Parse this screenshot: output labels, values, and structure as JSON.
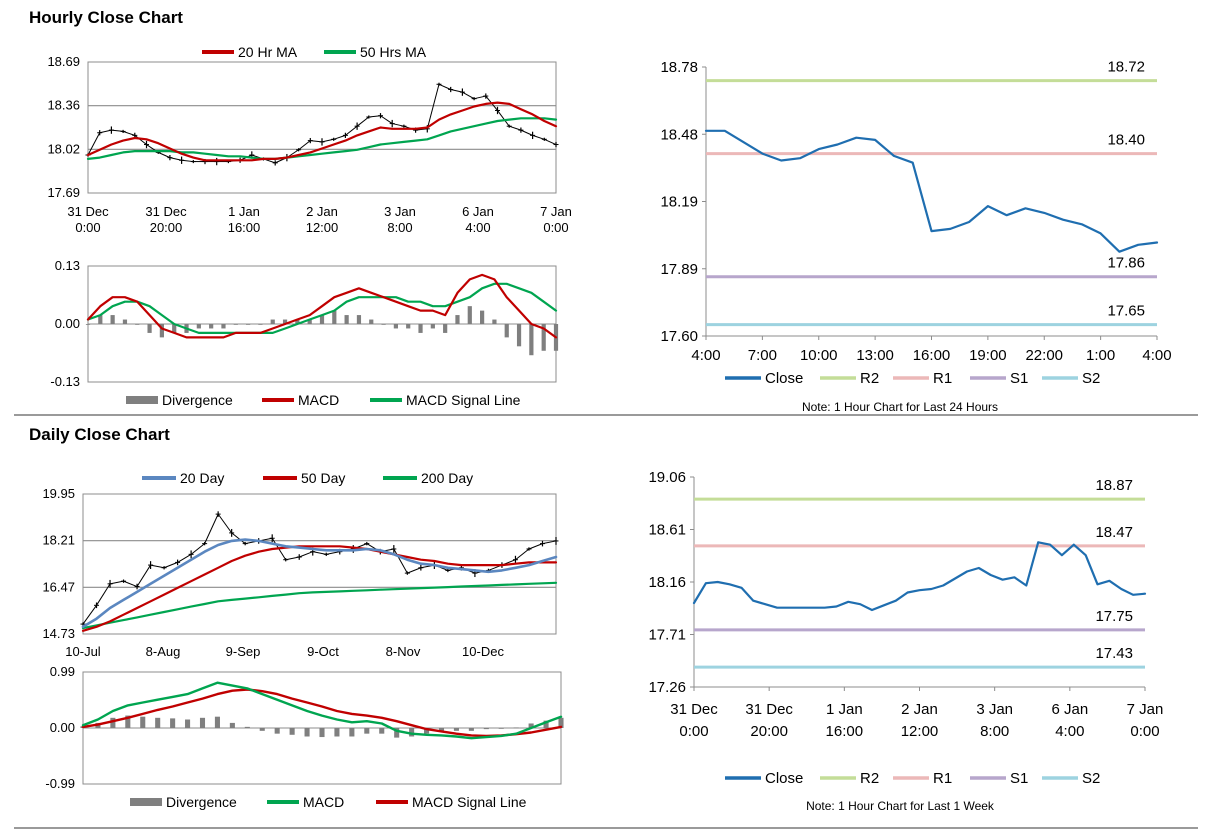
{
  "colors": {
    "ma_short": "#c00000",
    "ma_long": "#00a550",
    "close": "#1f6eb0",
    "r2": "#c4dd98",
    "r1": "#ecb8b8",
    "s1": "#b7a6cc",
    "s2": "#9dd3e0",
    "divergence": "#7f7f7f",
    "ma20_daily": "#5b87c0"
  },
  "sections": {
    "hourly_title": "Hourly Close Chart",
    "daily_title": "Daily Close Chart"
  },
  "chart_data": [
    {
      "id": "hourly_price",
      "type": "line",
      "title": "Hourly Close Chart",
      "ylim": [
        17.69,
        18.69
      ],
      "yticks": [
        "18.69",
        "18.36",
        "18.02",
        "17.69"
      ],
      "xticks": [
        [
          "31 Dec",
          "0:00"
        ],
        [
          "31 Dec",
          "20:00"
        ],
        [
          "1 Jan",
          "16:00"
        ],
        [
          "2 Jan",
          "12:00"
        ],
        [
          "3 Jan",
          "8:00"
        ],
        [
          "6 Jan",
          "4:00"
        ],
        [
          "7 Jan",
          "0:00"
        ]
      ],
      "legend": [
        "20 Hr MA",
        "50 Hrs MA"
      ],
      "series": [
        {
          "name": "Close",
          "values": [
            17.98,
            18.15,
            18.17,
            18.16,
            18.13,
            18.06,
            18.0,
            17.96,
            17.94,
            17.93,
            17.93,
            17.93,
            17.93,
            17.94,
            17.98,
            17.95,
            17.92,
            17.96,
            18.02,
            18.09,
            18.08,
            18.1,
            18.13,
            18.2,
            18.27,
            18.28,
            18.22,
            18.2,
            18.17,
            18.18,
            18.52,
            18.48,
            18.46,
            18.41,
            18.43,
            18.32,
            18.2,
            18.17,
            18.13,
            18.1,
            18.06
          ]
        },
        {
          "name": "20 Hr MA",
          "values": [
            17.98,
            18.02,
            18.06,
            18.09,
            18.11,
            18.1,
            18.07,
            18.03,
            17.99,
            17.96,
            17.94,
            17.94,
            17.94,
            17.94,
            17.94,
            17.95,
            17.95,
            17.96,
            17.98,
            18.0,
            18.03,
            18.06,
            18.09,
            18.13,
            18.16,
            18.19,
            18.18,
            18.18,
            18.18,
            18.19,
            18.25,
            18.29,
            18.32,
            18.35,
            18.37,
            18.38,
            18.37,
            18.33,
            18.29,
            18.24,
            18.2
          ]
        },
        {
          "name": "50 Hrs MA",
          "values": [
            17.95,
            17.96,
            17.98,
            18.0,
            18.01,
            18.01,
            18.01,
            18.01,
            18.0,
            18.0,
            17.99,
            17.98,
            17.97,
            17.97,
            17.96,
            17.95,
            17.95,
            17.96,
            17.97,
            17.98,
            17.99,
            18.0,
            18.01,
            18.02,
            18.04,
            18.06,
            18.07,
            18.08,
            18.09,
            18.1,
            18.13,
            18.16,
            18.18,
            18.2,
            18.22,
            18.24,
            18.25,
            18.26,
            18.26,
            18.26,
            18.25
          ]
        }
      ]
    },
    {
      "id": "hourly_macd",
      "type": "line",
      "ylim": [
        -0.13,
        0.13
      ],
      "yticks": [
        "0.13",
        "0.00",
        "-0.13"
      ],
      "legend": [
        "Divergence",
        "MACD",
        "MACD Signal Line"
      ],
      "series": [
        {
          "name": "MACD",
          "values": [
            0.01,
            0.04,
            0.06,
            0.06,
            0.05,
            0.02,
            -0.01,
            -0.02,
            -0.03,
            -0.03,
            -0.03,
            -0.03,
            -0.02,
            -0.02,
            -0.02,
            -0.01,
            0.0,
            0.01,
            0.02,
            0.04,
            0.06,
            0.07,
            0.08,
            0.07,
            0.06,
            0.05,
            0.04,
            0.03,
            0.03,
            0.02,
            0.07,
            0.1,
            0.11,
            0.1,
            0.06,
            0.03,
            0.0,
            -0.01,
            -0.03
          ]
        },
        {
          "name": "MACD Signal Line",
          "values": [
            0.01,
            0.02,
            0.04,
            0.05,
            0.05,
            0.04,
            0.02,
            0.0,
            -0.01,
            -0.02,
            -0.02,
            -0.02,
            -0.02,
            -0.02,
            -0.02,
            -0.02,
            -0.01,
            0.0,
            0.01,
            0.02,
            0.03,
            0.05,
            0.06,
            0.06,
            0.06,
            0.06,
            0.05,
            0.05,
            0.04,
            0.04,
            0.05,
            0.06,
            0.08,
            0.09,
            0.09,
            0.08,
            0.07,
            0.05,
            0.03
          ]
        },
        {
          "name": "Divergence",
          "values": [
            0.0,
            0.02,
            0.02,
            0.01,
            0.0,
            -0.02,
            -0.03,
            -0.02,
            -0.02,
            -0.01,
            -0.01,
            -0.01,
            0.0,
            0.0,
            0.0,
            0.01,
            0.01,
            0.01,
            0.01,
            0.02,
            0.03,
            0.02,
            0.02,
            0.01,
            0.0,
            -0.01,
            -0.01,
            -0.02,
            -0.01,
            -0.02,
            0.02,
            0.04,
            0.03,
            0.01,
            -0.03,
            -0.05,
            -0.07,
            -0.06,
            -0.06
          ]
        }
      ]
    },
    {
      "id": "hourly_24h",
      "type": "line",
      "ylim": [
        17.6,
        18.78
      ],
      "yticks": [
        "18.78",
        "18.48",
        "18.19",
        "17.89",
        "17.60"
      ],
      "xticks": [
        "4:00",
        "7:00",
        "10:00",
        "13:00",
        "16:00",
        "19:00",
        "22:00",
        "1:00",
        "4:00"
      ],
      "legend": [
        "Close",
        "R2",
        "R1",
        "S1",
        "S2"
      ],
      "note": "Note: 1 Hour Chart for Last 24 Hours",
      "levels": {
        "R2": 18.72,
        "R1": 18.4,
        "S1": 17.86,
        "S2": 17.65
      },
      "level_labels": {
        "R2": "18.72",
        "R1": "18.40",
        "S1": "17.86",
        "S2": "17.65"
      },
      "series": [
        {
          "name": "Close",
          "values": [
            18.5,
            18.5,
            18.45,
            18.4,
            18.37,
            18.38,
            18.42,
            18.44,
            18.47,
            18.46,
            18.39,
            18.36,
            18.06,
            18.07,
            18.1,
            18.17,
            18.13,
            18.16,
            18.14,
            18.11,
            18.09,
            18.05,
            17.97,
            18.0,
            18.01
          ]
        }
      ]
    },
    {
      "id": "daily_price",
      "type": "line",
      "title": "Daily Close Chart",
      "ylim": [
        14.73,
        19.95
      ],
      "yticks": [
        "19.95",
        "18.21",
        "16.47",
        "14.73"
      ],
      "xticks": [
        "10-Jul",
        "8-Aug",
        "9-Sep",
        "9-Oct",
        "8-Nov",
        "10-Dec"
      ],
      "legend": [
        "20 Day",
        "50 Day",
        "200 Day"
      ],
      "series": [
        {
          "name": "Close",
          "values": [
            15.1,
            15.8,
            16.6,
            16.7,
            16.5,
            17.3,
            17.2,
            17.4,
            17.7,
            18.1,
            19.2,
            18.5,
            18.1,
            18.2,
            18.3,
            17.5,
            17.6,
            17.8,
            17.7,
            17.8,
            17.9,
            18.1,
            17.8,
            17.9,
            17.0,
            17.2,
            17.3,
            17.1,
            17.2,
            17.0,
            17.1,
            17.3,
            17.5,
            17.9,
            18.1,
            18.2
          ]
        },
        {
          "name": "20 Day",
          "values": [
            15.0,
            15.3,
            15.7,
            16.0,
            16.3,
            16.6,
            16.9,
            17.2,
            17.5,
            17.8,
            18.05,
            18.2,
            18.25,
            18.2,
            18.1,
            18.0,
            17.95,
            17.9,
            17.85,
            17.85,
            17.85,
            17.9,
            17.85,
            17.7,
            17.5,
            17.35,
            17.3,
            17.2,
            17.15,
            17.1,
            17.05,
            17.1,
            17.2,
            17.3,
            17.45,
            17.6
          ]
        },
        {
          "name": "50 Day",
          "values": [
            14.85,
            15.0,
            15.2,
            15.45,
            15.7,
            15.95,
            16.2,
            16.45,
            16.7,
            16.95,
            17.2,
            17.45,
            17.65,
            17.8,
            17.9,
            17.95,
            18.0,
            18.0,
            18.0,
            18.0,
            17.95,
            17.9,
            17.8,
            17.7,
            17.6,
            17.5,
            17.45,
            17.35,
            17.3,
            17.3,
            17.3,
            17.3,
            17.35,
            17.4,
            17.4,
            17.4
          ]
        },
        {
          "name": "200 Day",
          "values": [
            14.95,
            15.05,
            15.15,
            15.25,
            15.35,
            15.45,
            15.55,
            15.65,
            15.75,
            15.85,
            15.95,
            16.0,
            16.05,
            16.1,
            16.15,
            16.2,
            16.25,
            16.28,
            16.3,
            16.32,
            16.34,
            16.36,
            16.38,
            16.4,
            16.42,
            16.44,
            16.46,
            16.48,
            16.5,
            16.52,
            16.54,
            16.56,
            16.58,
            16.6,
            16.62,
            16.64
          ]
        }
      ]
    },
    {
      "id": "daily_macd",
      "type": "line",
      "ylim": [
        -0.99,
        0.99
      ],
      "yticks": [
        "0.99",
        "0.00",
        "-0.99"
      ],
      "legend": [
        "Divergence",
        "MACD",
        "MACD Signal Line"
      ],
      "series": [
        {
          "name": "MACD",
          "values": [
            0.05,
            0.15,
            0.3,
            0.4,
            0.45,
            0.5,
            0.55,
            0.6,
            0.7,
            0.8,
            0.75,
            0.7,
            0.6,
            0.5,
            0.4,
            0.3,
            0.22,
            0.15,
            0.1,
            0.12,
            0.08,
            -0.05,
            -0.1,
            -0.12,
            -0.13,
            -0.15,
            -0.18,
            -0.16,
            -0.14,
            -0.1,
            0.0,
            0.1,
            0.2
          ]
        },
        {
          "name": "MACD Signal Line",
          "values": [
            0.02,
            0.06,
            0.12,
            0.18,
            0.25,
            0.32,
            0.38,
            0.45,
            0.52,
            0.6,
            0.66,
            0.68,
            0.65,
            0.6,
            0.52,
            0.45,
            0.38,
            0.3,
            0.25,
            0.22,
            0.18,
            0.12,
            0.05,
            -0.02,
            -0.06,
            -0.1,
            -0.13,
            -0.14,
            -0.13,
            -0.11,
            -0.08,
            -0.03,
            0.02
          ]
        },
        {
          "name": "Divergence",
          "values": [
            0.03,
            0.09,
            0.18,
            0.22,
            0.2,
            0.18,
            0.17,
            0.15,
            0.18,
            0.2,
            0.09,
            0.02,
            -0.05,
            -0.1,
            -0.12,
            -0.15,
            -0.16,
            -0.15,
            -0.15,
            -0.1,
            -0.1,
            -0.17,
            -0.15,
            -0.1,
            -0.07,
            -0.05,
            -0.05,
            -0.02,
            -0.01,
            0.01,
            0.08,
            0.13,
            0.18
          ]
        }
      ]
    },
    {
      "id": "hourly_1w",
      "type": "line",
      "ylim": [
        17.26,
        19.06
      ],
      "yticks": [
        "19.06",
        "18.61",
        "18.16",
        "17.71",
        "17.26"
      ],
      "xticks": [
        [
          "31 Dec",
          "0:00"
        ],
        [
          "31 Dec",
          "20:00"
        ],
        [
          "1 Jan",
          "16:00"
        ],
        [
          "2 Jan",
          "12:00"
        ],
        [
          "3 Jan",
          "8:00"
        ],
        [
          "6 Jan",
          "4:00"
        ],
        [
          "7 Jan",
          "0:00"
        ]
      ],
      "legend": [
        "Close",
        "R2",
        "R1",
        "S1",
        "S2"
      ],
      "note": "Note: 1 Hour Chart for Last 1 Week",
      "levels": {
        "R2": 18.87,
        "R1": 18.47,
        "S1": 17.75,
        "S2": 17.43
      },
      "level_labels": {
        "R2": "18.87",
        "R1": "18.47",
        "S1": "17.75",
        "S2": "17.43"
      },
      "series": [
        {
          "name": "Close",
          "values": [
            17.98,
            18.15,
            18.16,
            18.14,
            18.11,
            18.0,
            17.97,
            17.94,
            17.94,
            17.94,
            17.94,
            17.94,
            17.95,
            17.99,
            17.97,
            17.92,
            17.96,
            18.0,
            18.07,
            18.09,
            18.1,
            18.13,
            18.19,
            18.25,
            18.28,
            18.22,
            18.18,
            18.2,
            18.13,
            18.5,
            18.48,
            18.39,
            18.48,
            18.39,
            18.14,
            18.17,
            18.1,
            18.05,
            18.06
          ]
        }
      ]
    }
  ]
}
